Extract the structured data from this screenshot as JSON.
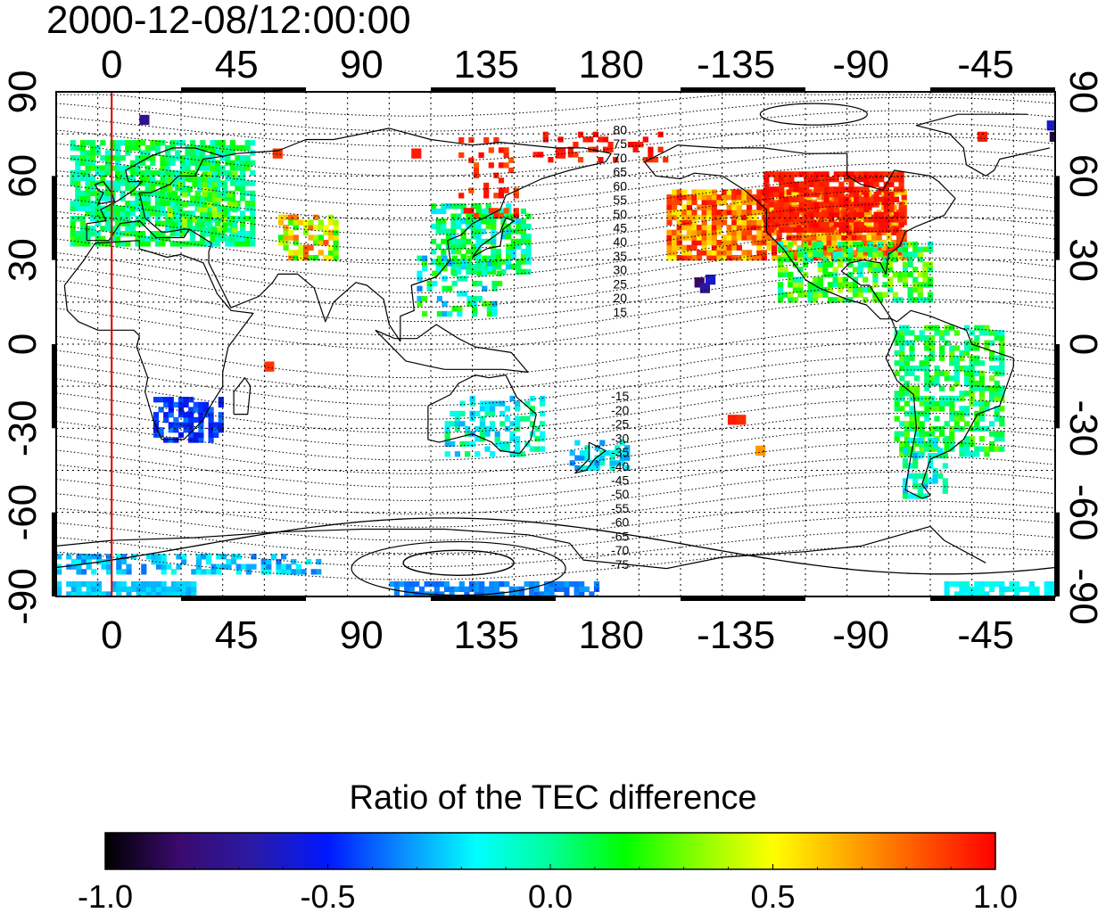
{
  "title": "2000-12-08/12:00:00",
  "map": {
    "lon_ticks": [
      "0",
      "45",
      "90",
      "135",
      "180",
      "-135",
      "-90",
      "-45"
    ],
    "lat_ticks": [
      "90",
      "60",
      "30",
      "0",
      "-30",
      "-60",
      "-90"
    ],
    "lon_range": [
      -20,
      340
    ],
    "lat_range": [
      -90,
      90
    ],
    "marker_meridian_lon": 0,
    "marker_meridian_color": "#dd0000",
    "gridlines": "dotted, every 15 degrees",
    "contour_labels_north": [
      "80",
      "75",
      "70",
      "65",
      "60",
      "55",
      "50",
      "45",
      "40",
      "35",
      "30",
      "25",
      "20",
      "15"
    ],
    "contour_labels_south": [
      "-15",
      "-20",
      "-25",
      "-30",
      "-35",
      "-40",
      "-45",
      "-50",
      "-55",
      "-60",
      "-65",
      "-70",
      "-75"
    ],
    "features": [
      "coastlines",
      "magnetic-latitude-contours",
      "tec-difference-ratio-pixels"
    ]
  },
  "colorbar": {
    "title": "Ratio of the TEC difference",
    "min": -1.0,
    "max": 1.0,
    "tick_labels": [
      "-1.0",
      "-0.5",
      "0.0",
      "0.5",
      "1.0"
    ],
    "colormap": [
      "#000000",
      "#3a0a6e",
      "#2a1aa6",
      "#0018ff",
      "#0a8cff",
      "#00ffff",
      "#00ff99",
      "#00ff00",
      "#8aff00",
      "#ffff00",
      "#ffaa00",
      "#ff5500",
      "#ff0000"
    ]
  }
}
